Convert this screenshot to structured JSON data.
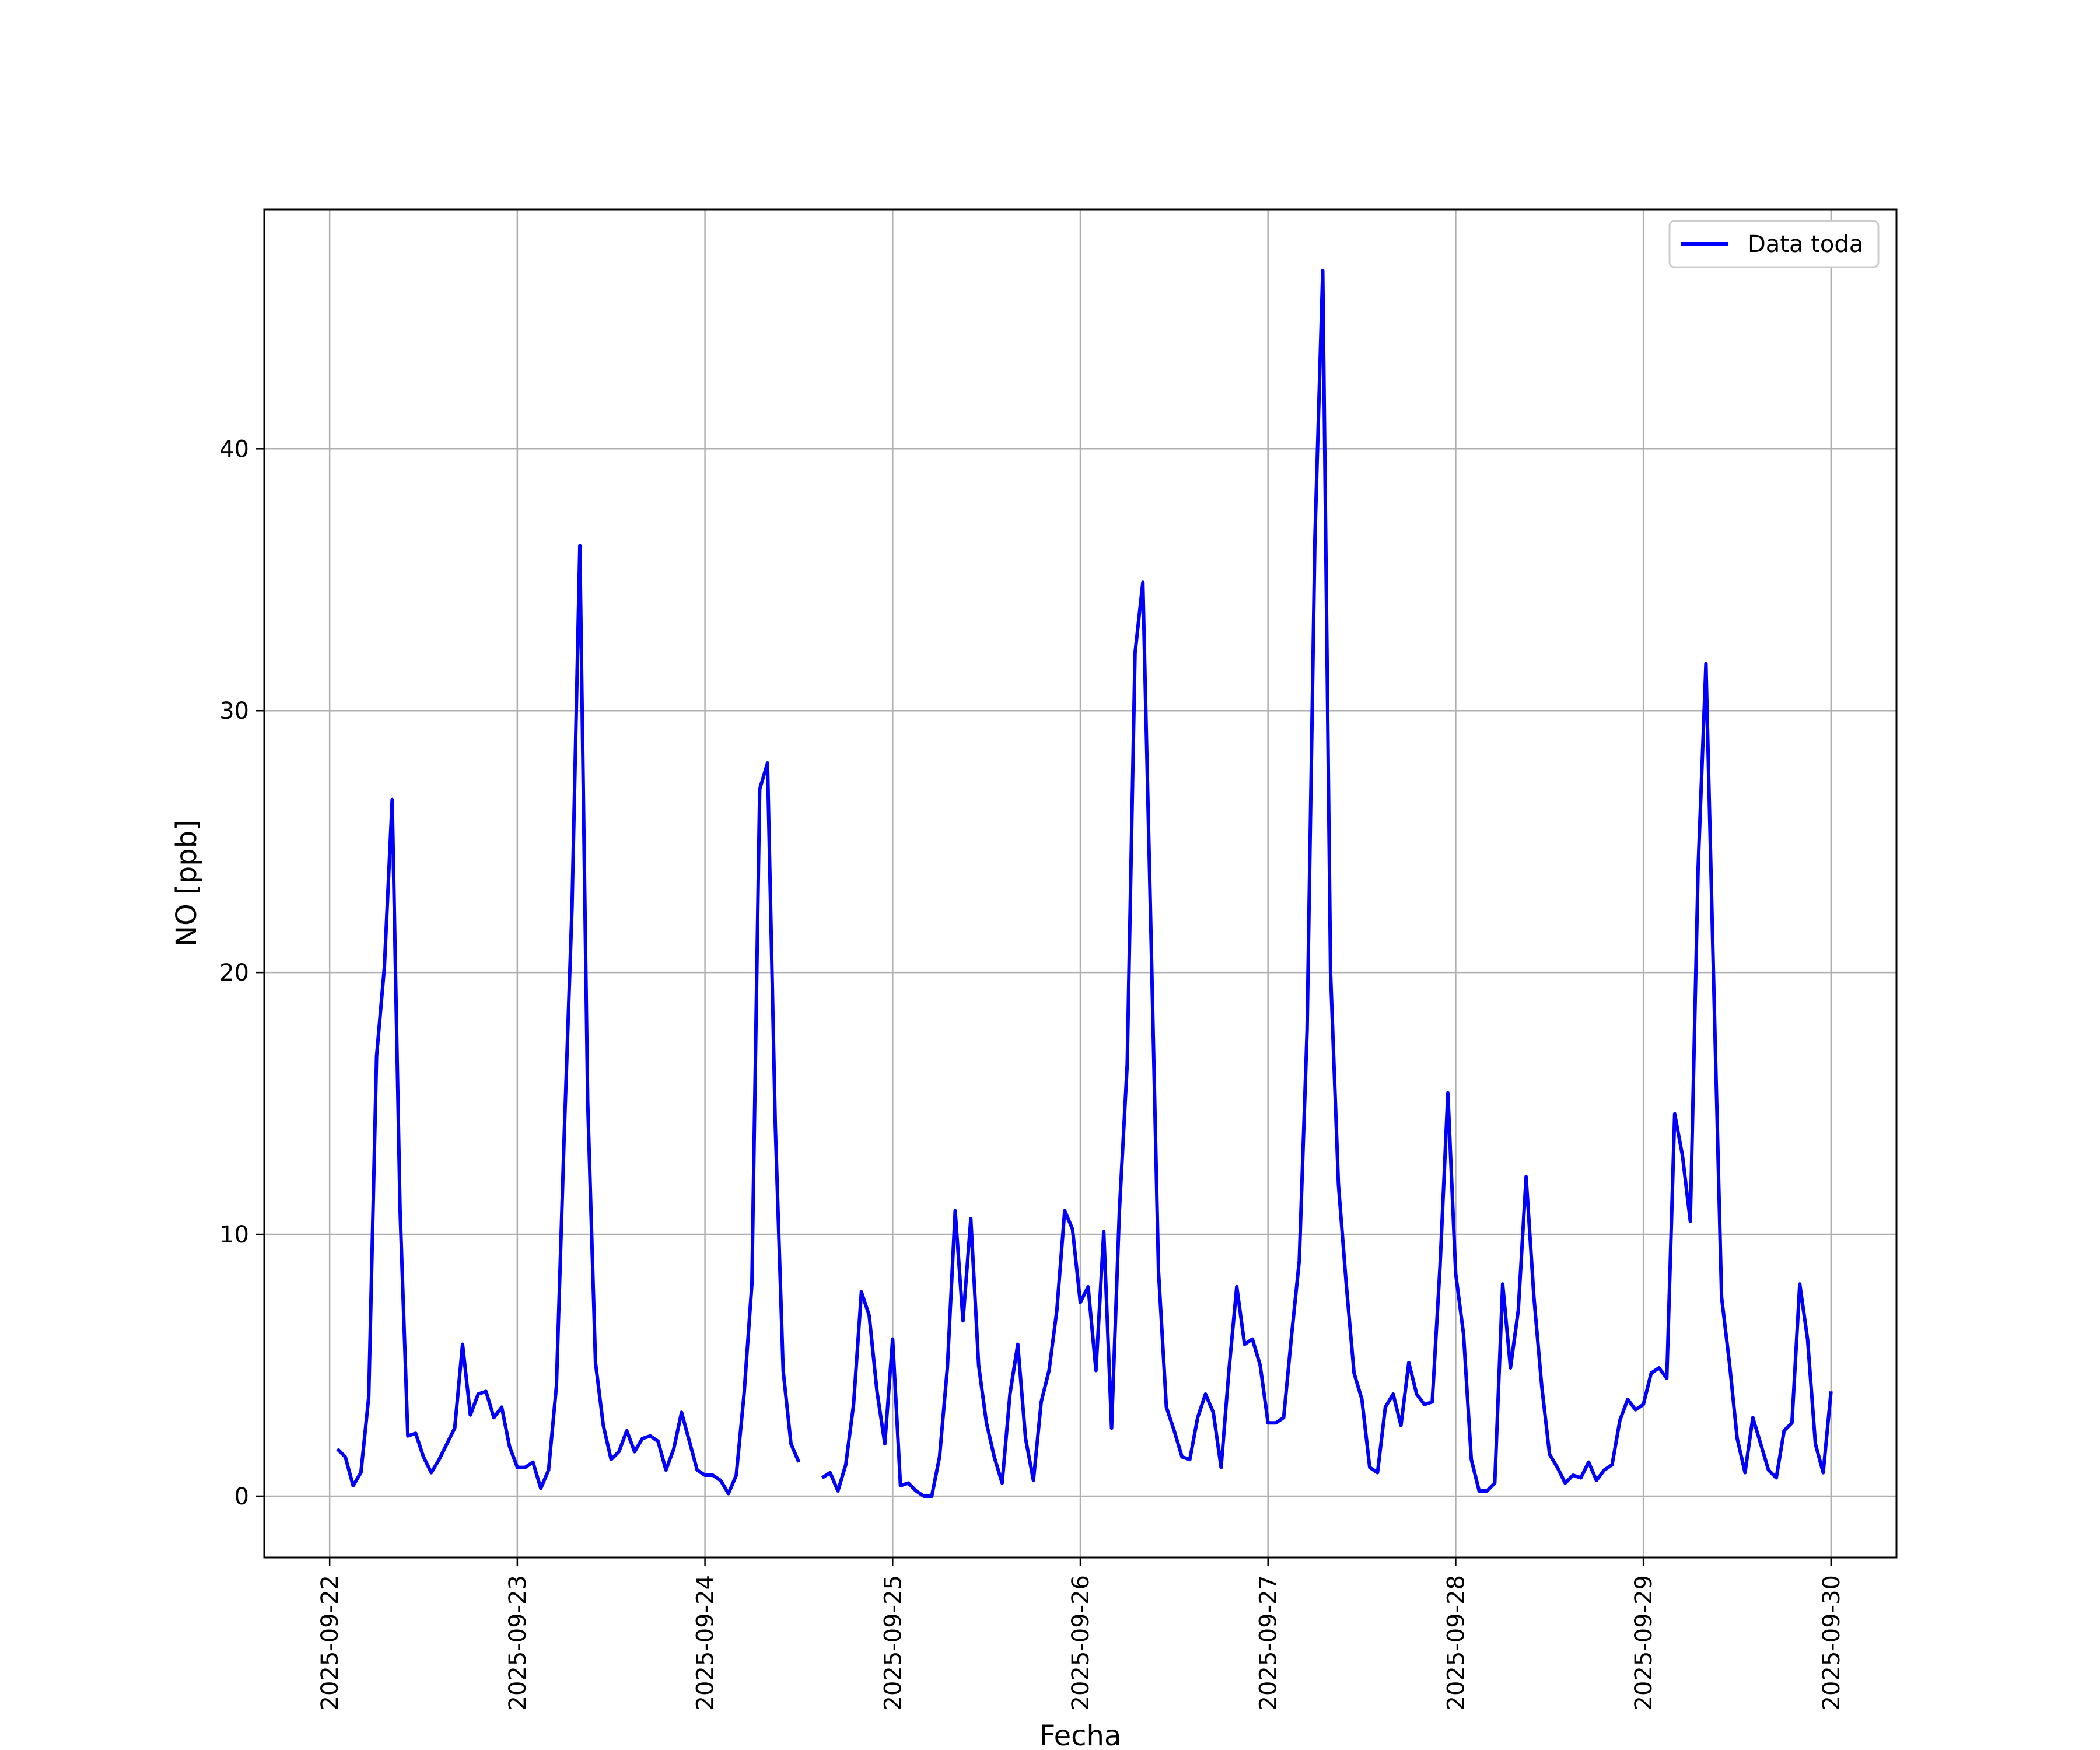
{
  "chart_data": {
    "type": "line",
    "xlabel": "Fecha",
    "ylabel": "NO [ppb]",
    "x_ticks": [
      "2025-09-22",
      "2025-09-23",
      "2025-09-24",
      "2025-09-25",
      "2025-09-26",
      "2025-09-27",
      "2025-09-28",
      "2025-09-29",
      "2025-09-30"
    ],
    "y_ticks": [
      0,
      10,
      20,
      30,
      40
    ],
    "xlim": [
      "2025-09-21T15:38",
      "2025-09-30T08:22"
    ],
    "ylim": [
      -2.34,
      49.14
    ],
    "grid": true,
    "legend": "top-right",
    "series": [
      {
        "name": "Data toda",
        "color": "#0000ff",
        "points": [
          [
            "2025-09-22T01:00",
            1.8
          ],
          [
            "2025-09-22T02:00",
            1.5
          ],
          [
            "2025-09-22T03:00",
            0.4
          ],
          [
            "2025-09-22T04:00",
            0.9
          ],
          [
            "2025-09-22T05:00",
            3.8
          ],
          [
            "2025-09-22T06:00",
            16.8
          ],
          [
            "2025-09-22T07:00",
            20.2
          ],
          [
            "2025-09-22T08:00",
            26.6
          ],
          [
            "2025-09-22T09:00",
            11.0
          ],
          [
            "2025-09-22T10:00",
            2.3
          ],
          [
            "2025-09-22T11:00",
            2.4
          ],
          [
            "2025-09-22T12:00",
            1.5
          ],
          [
            "2025-09-22T13:00",
            0.9
          ],
          [
            "2025-09-22T14:00",
            1.4
          ],
          [
            "2025-09-22T15:00",
            2.0
          ],
          [
            "2025-09-22T16:00",
            2.6
          ],
          [
            "2025-09-22T17:00",
            5.8
          ],
          [
            "2025-09-22T18:00",
            3.1
          ],
          [
            "2025-09-22T19:00",
            3.9
          ],
          [
            "2025-09-22T20:00",
            4.0
          ],
          [
            "2025-09-22T21:00",
            3.0
          ],
          [
            "2025-09-22T22:00",
            3.4
          ],
          [
            "2025-09-22T23:00",
            1.9
          ],
          [
            "2025-09-23T00:00",
            1.1
          ],
          [
            "2025-09-23T01:00",
            1.1
          ],
          [
            "2025-09-23T02:00",
            1.3
          ],
          [
            "2025-09-23T03:00",
            0.3
          ],
          [
            "2025-09-23T04:00",
            1.0
          ],
          [
            "2025-09-23T05:00",
            4.2
          ],
          [
            "2025-09-23T06:00",
            13.8
          ],
          [
            "2025-09-23T07:00",
            22.5
          ],
          [
            "2025-09-23T08:00",
            36.3
          ],
          [
            "2025-09-23T09:00",
            15.1
          ],
          [
            "2025-09-23T10:00",
            5.1
          ],
          [
            "2025-09-23T11:00",
            2.7
          ],
          [
            "2025-09-23T12:00",
            1.4
          ],
          [
            "2025-09-23T13:00",
            1.7
          ],
          [
            "2025-09-23T14:00",
            2.5
          ],
          [
            "2025-09-23T15:00",
            1.7
          ],
          [
            "2025-09-23T16:00",
            2.2
          ],
          [
            "2025-09-23T17:00",
            2.3
          ],
          [
            "2025-09-23T18:00",
            2.1
          ],
          [
            "2025-09-23T19:00",
            1.0
          ],
          [
            "2025-09-23T20:00",
            1.8
          ],
          [
            "2025-09-23T21:00",
            3.2
          ],
          [
            "2025-09-23T22:00",
            2.1
          ],
          [
            "2025-09-23T23:00",
            1.0
          ],
          [
            "2025-09-24T00:00",
            0.8
          ],
          [
            "2025-09-24T01:00",
            0.8
          ],
          [
            "2025-09-24T02:00",
            0.6
          ],
          [
            "2025-09-24T03:00",
            0.1
          ],
          [
            "2025-09-24T04:00",
            0.8
          ],
          [
            "2025-09-24T05:00",
            3.9
          ],
          [
            "2025-09-24T06:00",
            8.1
          ],
          [
            "2025-09-24T07:00",
            27.0
          ],
          [
            "2025-09-24T08:00",
            28.0
          ],
          [
            "2025-09-24T09:00",
            14.1
          ],
          [
            "2025-09-24T10:00",
            4.8
          ],
          [
            "2025-09-24T11:00",
            2.0
          ],
          [
            "2025-09-24T12:00",
            1.3
          ],
          [
            "2025-09-24T15:00",
            0.7
          ],
          [
            "2025-09-24T16:00",
            0.9
          ],
          [
            "2025-09-24T17:00",
            0.2
          ],
          [
            "2025-09-24T18:00",
            1.2
          ],
          [
            "2025-09-24T19:00",
            3.5
          ],
          [
            "2025-09-24T20:00",
            7.8
          ],
          [
            "2025-09-24T21:00",
            6.9
          ],
          [
            "2025-09-24T22:00",
            4.0
          ],
          [
            "2025-09-24T23:00",
            2.0
          ],
          [
            "2025-09-25T00:00",
            6.0
          ],
          [
            "2025-09-25T01:00",
            0.4
          ],
          [
            "2025-09-25T02:00",
            0.5
          ],
          [
            "2025-09-25T03:00",
            0.2
          ],
          [
            "2025-09-25T04:00",
            0.0
          ],
          [
            "2025-09-25T05:00",
            0.0
          ],
          [
            "2025-09-25T06:00",
            1.5
          ],
          [
            "2025-09-25T07:00",
            4.9
          ],
          [
            "2025-09-25T08:00",
            10.9
          ],
          [
            "2025-09-25T09:00",
            6.7
          ],
          [
            "2025-09-25T10:00",
            10.6
          ],
          [
            "2025-09-25T11:00",
            5.0
          ],
          [
            "2025-09-25T12:00",
            2.8
          ],
          [
            "2025-09-25T13:00",
            1.5
          ],
          [
            "2025-09-25T14:00",
            0.5
          ],
          [
            "2025-09-25T15:00",
            3.9
          ],
          [
            "2025-09-25T16:00",
            5.8
          ],
          [
            "2025-09-25T17:00",
            2.2
          ],
          [
            "2025-09-25T18:00",
            0.6
          ],
          [
            "2025-09-25T19:00",
            3.6
          ],
          [
            "2025-09-25T20:00",
            4.8
          ],
          [
            "2025-09-25T21:00",
            7.1
          ],
          [
            "2025-09-25T22:00",
            10.9
          ],
          [
            "2025-09-25T23:00",
            10.2
          ],
          [
            "2025-09-26T00:00",
            7.4
          ],
          [
            "2025-09-26T01:00",
            8.0
          ],
          [
            "2025-09-26T02:00",
            4.8
          ],
          [
            "2025-09-26T03:00",
            10.1
          ],
          [
            "2025-09-26T04:00",
            2.6
          ],
          [
            "2025-09-26T05:00",
            10.9
          ],
          [
            "2025-09-26T06:00",
            16.5
          ],
          [
            "2025-09-26T07:00",
            32.2
          ],
          [
            "2025-09-26T08:00",
            34.9
          ],
          [
            "2025-09-26T09:00",
            22.0
          ],
          [
            "2025-09-26T10:00",
            8.6
          ],
          [
            "2025-09-26T11:00",
            3.4
          ],
          [
            "2025-09-26T12:00",
            2.5
          ],
          [
            "2025-09-26T13:00",
            1.5
          ],
          [
            "2025-09-26T14:00",
            1.4
          ],
          [
            "2025-09-26T15:00",
            3.0
          ],
          [
            "2025-09-26T16:00",
            3.9
          ],
          [
            "2025-09-26T17:00",
            3.2
          ],
          [
            "2025-09-26T18:00",
            1.1
          ],
          [
            "2025-09-26T19:00",
            4.8
          ],
          [
            "2025-09-26T20:00",
            8.0
          ],
          [
            "2025-09-26T21:00",
            5.8
          ],
          [
            "2025-09-26T22:00",
            6.0
          ],
          [
            "2025-09-26T23:00",
            5.0
          ],
          [
            "2025-09-27T00:00",
            2.8
          ],
          [
            "2025-09-27T01:00",
            2.8
          ],
          [
            "2025-09-27T02:00",
            3.0
          ],
          [
            "2025-09-27T03:00",
            6.1
          ],
          [
            "2025-09-27T04:00",
            9.0
          ],
          [
            "2025-09-27T05:00",
            17.8
          ],
          [
            "2025-09-27T06:00",
            36.6
          ],
          [
            "2025-09-27T07:00",
            46.8
          ],
          [
            "2025-09-27T08:00",
            20.0
          ],
          [
            "2025-09-27T09:00",
            11.9
          ],
          [
            "2025-09-27T10:00",
            8.1
          ],
          [
            "2025-09-27T11:00",
            4.7
          ],
          [
            "2025-09-27T12:00",
            3.7
          ],
          [
            "2025-09-27T13:00",
            1.1
          ],
          [
            "2025-09-27T14:00",
            0.9
          ],
          [
            "2025-09-27T15:00",
            3.4
          ],
          [
            "2025-09-27T16:00",
            3.9
          ],
          [
            "2025-09-27T17:00",
            2.7
          ],
          [
            "2025-09-27T18:00",
            5.1
          ],
          [
            "2025-09-27T19:00",
            3.9
          ],
          [
            "2025-09-27T20:00",
            3.5
          ],
          [
            "2025-09-27T21:00",
            3.6
          ],
          [
            "2025-09-27T22:00",
            8.8
          ],
          [
            "2025-09-27T23:00",
            15.4
          ],
          [
            "2025-09-28T00:00",
            8.5
          ],
          [
            "2025-09-28T01:00",
            6.2
          ],
          [
            "2025-09-28T02:00",
            1.4
          ],
          [
            "2025-09-28T03:00",
            0.2
          ],
          [
            "2025-09-28T04:00",
            0.2
          ],
          [
            "2025-09-28T05:00",
            0.5
          ],
          [
            "2025-09-28T06:00",
            8.1
          ],
          [
            "2025-09-28T07:00",
            4.9
          ],
          [
            "2025-09-28T08:00",
            7.1
          ],
          [
            "2025-09-28T09:00",
            12.2
          ],
          [
            "2025-09-28T10:00",
            7.6
          ],
          [
            "2025-09-28T11:00",
            4.2
          ],
          [
            "2025-09-28T12:00",
            1.6
          ],
          [
            "2025-09-28T13:00",
            1.1
          ],
          [
            "2025-09-28T14:00",
            0.5
          ],
          [
            "2025-09-28T15:00",
            0.8
          ],
          [
            "2025-09-28T16:00",
            0.7
          ],
          [
            "2025-09-28T17:00",
            1.3
          ],
          [
            "2025-09-28T18:00",
            0.6
          ],
          [
            "2025-09-28T19:00",
            1.0
          ],
          [
            "2025-09-28T20:00",
            1.2
          ],
          [
            "2025-09-28T21:00",
            2.9
          ],
          [
            "2025-09-28T22:00",
            3.7
          ],
          [
            "2025-09-28T23:00",
            3.3
          ],
          [
            "2025-09-29T00:00",
            3.5
          ],
          [
            "2025-09-29T01:00",
            4.7
          ],
          [
            "2025-09-29T02:00",
            4.9
          ],
          [
            "2025-09-29T03:00",
            4.5
          ],
          [
            "2025-09-29T04:00",
            14.6
          ],
          [
            "2025-09-29T05:00",
            13.0
          ],
          [
            "2025-09-29T06:00",
            10.5
          ],
          [
            "2025-09-29T07:00",
            24.0
          ],
          [
            "2025-09-29T08:00",
            31.8
          ],
          [
            "2025-09-29T09:00",
            19.5
          ],
          [
            "2025-09-29T10:00",
            7.6
          ],
          [
            "2025-09-29T11:00",
            5.1
          ],
          [
            "2025-09-29T12:00",
            2.2
          ],
          [
            "2025-09-29T13:00",
            0.9
          ],
          [
            "2025-09-29T14:00",
            3.0
          ],
          [
            "2025-09-29T15:00",
            2.0
          ],
          [
            "2025-09-29T16:00",
            1.0
          ],
          [
            "2025-09-29T17:00",
            0.7
          ],
          [
            "2025-09-29T18:00",
            2.5
          ],
          [
            "2025-09-29T19:00",
            2.8
          ],
          [
            "2025-09-29T20:00",
            8.1
          ],
          [
            "2025-09-29T21:00",
            6.0
          ],
          [
            "2025-09-29T22:00",
            2.0
          ],
          [
            "2025-09-29T23:00",
            0.9
          ],
          [
            "2025-09-30T00:00",
            4.0
          ]
        ]
      }
    ]
  }
}
